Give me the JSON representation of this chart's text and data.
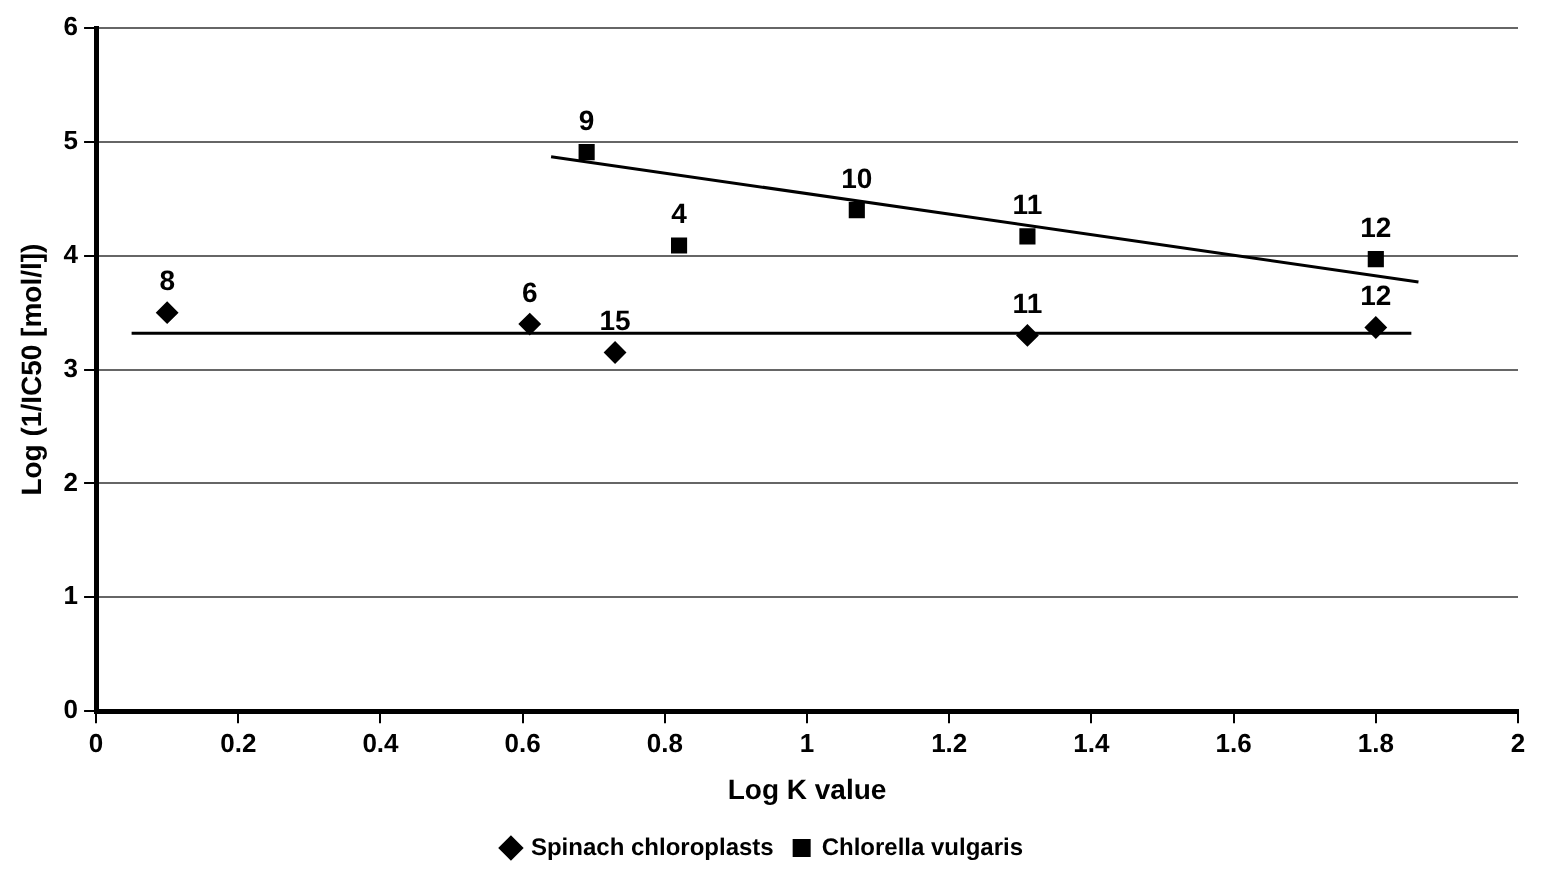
{
  "chart_data": {
    "type": "scatter",
    "xlabel": "Log K value",
    "ylabel": "Log (1/IC50 [mol/l])",
    "xlim": [
      0,
      2
    ],
    "xticks": [
      0,
      0.2,
      0.4,
      0.6,
      0.8,
      1,
      1.2,
      1.4,
      1.6,
      1.8,
      2
    ],
    "ylim": [
      0,
      6
    ],
    "yticks": [
      0,
      1,
      2,
      3,
      4,
      5,
      6
    ],
    "grid": "y",
    "legend": "bottom",
    "series": [
      {
        "name": "Spinach chloroplasts",
        "color": "#000000",
        "marker": "diamond",
        "x": [
          0.1,
          0.61,
          0.73,
          1.31,
          1.8
        ],
        "values": [
          3.5,
          3.4,
          3.15,
          3.3,
          3.37
        ]
      },
      {
        "name": "Chlorella vulgaris",
        "color": "#000000",
        "marker": "square",
        "x": [
          0.69,
          0.82,
          1.07,
          1.31,
          1.8
        ],
        "values": [
          4.91,
          4.09,
          4.4,
          4.17,
          3.97
        ]
      },
      {
        "type": "line",
        "color": "#000000",
        "marker": "none",
        "x": [
          0.05,
          1.85
        ],
        "values": [
          3.32,
          3.32
        ]
      },
      {
        "type": "line",
        "color": "#000000",
        "marker": "none",
        "x": [
          0.64,
          1.86
        ],
        "values": [
          4.87,
          3.77
        ]
      }
    ],
    "annotations": [
      {
        "text": "8",
        "x": 0.1,
        "y": 3.5
      },
      {
        "text": "6",
        "x": 0.61,
        "y": 3.4
      },
      {
        "text": "15",
        "x": 0.73,
        "y": 3.15
      },
      {
        "text": "11",
        "x": 1.31,
        "y": 3.3
      },
      {
        "text": "12",
        "x": 1.8,
        "y": 3.37
      },
      {
        "text": "9",
        "x": 0.69,
        "y": 4.91
      },
      {
        "text": "4",
        "x": 0.82,
        "y": 4.09
      },
      {
        "text": "10",
        "x": 1.07,
        "y": 4.4
      },
      {
        "text": "11",
        "x": 1.31,
        "y": 4.17
      },
      {
        "text": "12",
        "x": 1.8,
        "y": 3.97
      }
    ]
  }
}
